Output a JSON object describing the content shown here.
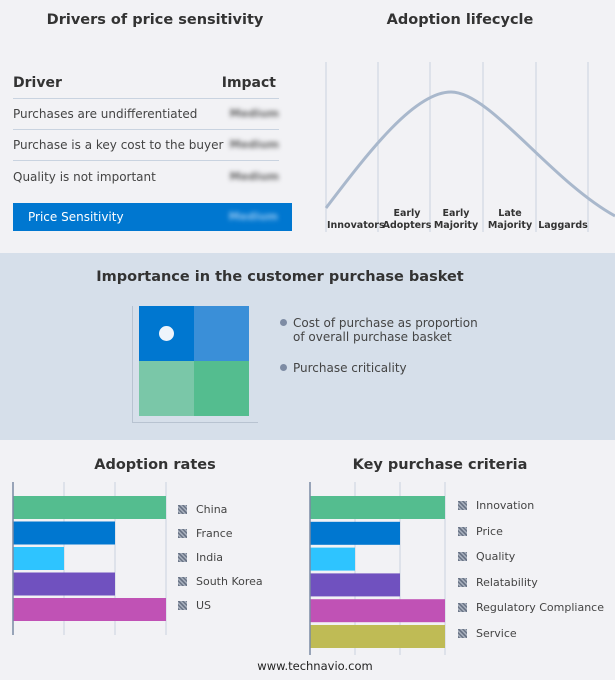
{
  "drivers": {
    "title": "Drivers of price sensitivity",
    "col_driver": "Driver",
    "col_impact": "Impact",
    "rows": [
      {
        "driver": "Purchases are undifferentiated",
        "impact": "Medium"
      },
      {
        "driver": "Purchase is a key cost to the buyer",
        "impact": "Medium"
      },
      {
        "driver": "Quality is not important",
        "impact": "Medium"
      }
    ],
    "summary": {
      "label": "Price Sensitivity",
      "impact": "Medium",
      "color": "#0077d0"
    }
  },
  "lifecycle": {
    "title": "Adoption lifecycle",
    "stages": [
      "Innovators",
      "Early Adopters",
      "Early Majority",
      "Late Majority",
      "Laggards"
    ]
  },
  "basket": {
    "title": "Importance in the customer purchase basket",
    "legend": [
      "Cost of purchase as proportion of overall purchase basket",
      "Purchase criticality"
    ],
    "colors": [
      "#0077d0",
      "#3a8fd8",
      "#7ac7a8",
      "#54bd8f"
    ]
  },
  "chart_data": [
    {
      "type": "bar",
      "title": "Adoption rates",
      "categories": [
        "China",
        "France",
        "India",
        "South Korea",
        "US"
      ],
      "values": [
        3,
        2,
        1,
        2,
        3
      ],
      "xlim": [
        0,
        3
      ],
      "grid": true,
      "legend": "right",
      "colors": [
        "#54bd8f",
        "#0077d0",
        "#2ec4ff",
        "#7051bf",
        "#c052b5"
      ]
    },
    {
      "type": "bar",
      "title": "Key purchase criteria",
      "categories": [
        "Innovation",
        "Price",
        "Quality",
        "Relatability",
        "Regulatory Compliance",
        "Service"
      ],
      "values": [
        3,
        2,
        1,
        2,
        3,
        3
      ],
      "xlim": [
        0,
        3
      ],
      "grid": true,
      "legend": "right",
      "colors": [
        "#54bd8f",
        "#0077d0",
        "#2ec4ff",
        "#7051bf",
        "#c052b5",
        "#bfbb55"
      ]
    }
  ],
  "footer": "www.technavio.com"
}
